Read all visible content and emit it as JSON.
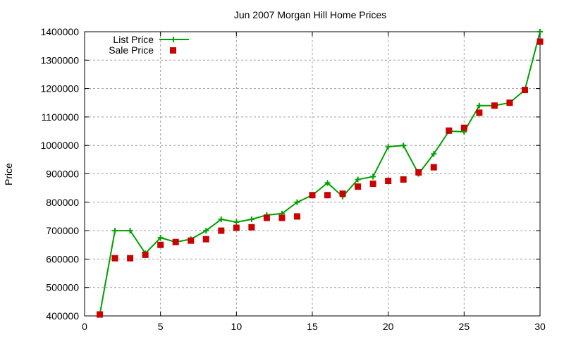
{
  "chart_data": {
    "type": "line",
    "title": "Jun 2007 Morgan Hill Home Prices",
    "xlabel": "",
    "ylabel": "Price",
    "xlim": [
      0,
      30
    ],
    "ylim": [
      400000,
      1400000
    ],
    "xticks": [
      0,
      5,
      10,
      15,
      20,
      25,
      30
    ],
    "yticks": [
      400000,
      500000,
      600000,
      700000,
      800000,
      900000,
      1000000,
      1100000,
      1200000,
      1300000,
      1400000
    ],
    "grid": true,
    "legend": "top-left",
    "x": [
      1,
      2,
      3,
      4,
      5,
      6,
      7,
      8,
      9,
      10,
      11,
      12,
      13,
      14,
      15,
      16,
      17,
      18,
      19,
      20,
      21,
      22,
      23,
      24,
      25,
      26,
      27,
      28,
      29,
      30
    ],
    "series": [
      {
        "name": "List Price",
        "style": "linespoints",
        "marker": "plus",
        "color": "#00a000",
        "values": [
          405000,
          700000,
          700000,
          620000,
          675000,
          660000,
          670000,
          700000,
          740000,
          730000,
          740000,
          755000,
          760000,
          800000,
          825000,
          868000,
          820000,
          880000,
          890000,
          995000,
          1000000,
          900000,
          970000,
          1050000,
          1048000,
          1140000,
          1140000,
          1150000,
          1195000,
          1400000
        ]
      },
      {
        "name": "Sale Price",
        "style": "points",
        "marker": "square",
        "color": "#cc0000",
        "values": [
          405000,
          603000,
          603000,
          615000,
          650000,
          660000,
          665000,
          670000,
          700000,
          710000,
          712000,
          745000,
          745000,
          750000,
          825000,
          825000,
          830000,
          855000,
          865000,
          875000,
          880000,
          905000,
          923000,
          1052000,
          1062000,
          1115000,
          1140000,
          1150000,
          1195000,
          1365000
        ]
      }
    ]
  }
}
